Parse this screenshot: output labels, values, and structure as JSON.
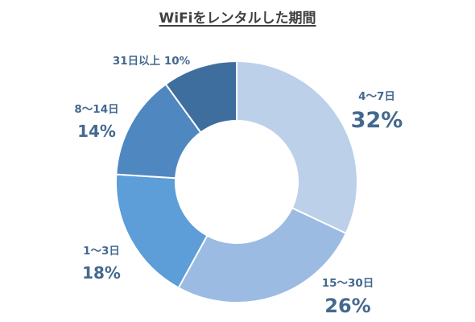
{
  "chart_data": {
    "type": "pie",
    "style": "donut",
    "title": "WiFiをレンタルした期間",
    "start_angle_deg": 0,
    "direction": "clockwise",
    "slices": [
      {
        "key": "s4_7",
        "label": "4～7日",
        "value": 32,
        "display": "32%",
        "color": "#bcd0ea"
      },
      {
        "key": "s15_30",
        "label": "15～30日",
        "value": 26,
        "display": "26%",
        "color": "#9bbbe2"
      },
      {
        "key": "s1_3",
        "label": "1～3日",
        "value": 18,
        "display": "18%",
        "color": "#5d9dd8"
      },
      {
        "key": "s8_14",
        "label": "8～14日",
        "value": 14,
        "display": "14%",
        "color": "#4f87c0"
      },
      {
        "key": "s31",
        "label": "31日以上",
        "value": 10,
        "display": "10%",
        "color": "#3e6e9e"
      }
    ]
  }
}
